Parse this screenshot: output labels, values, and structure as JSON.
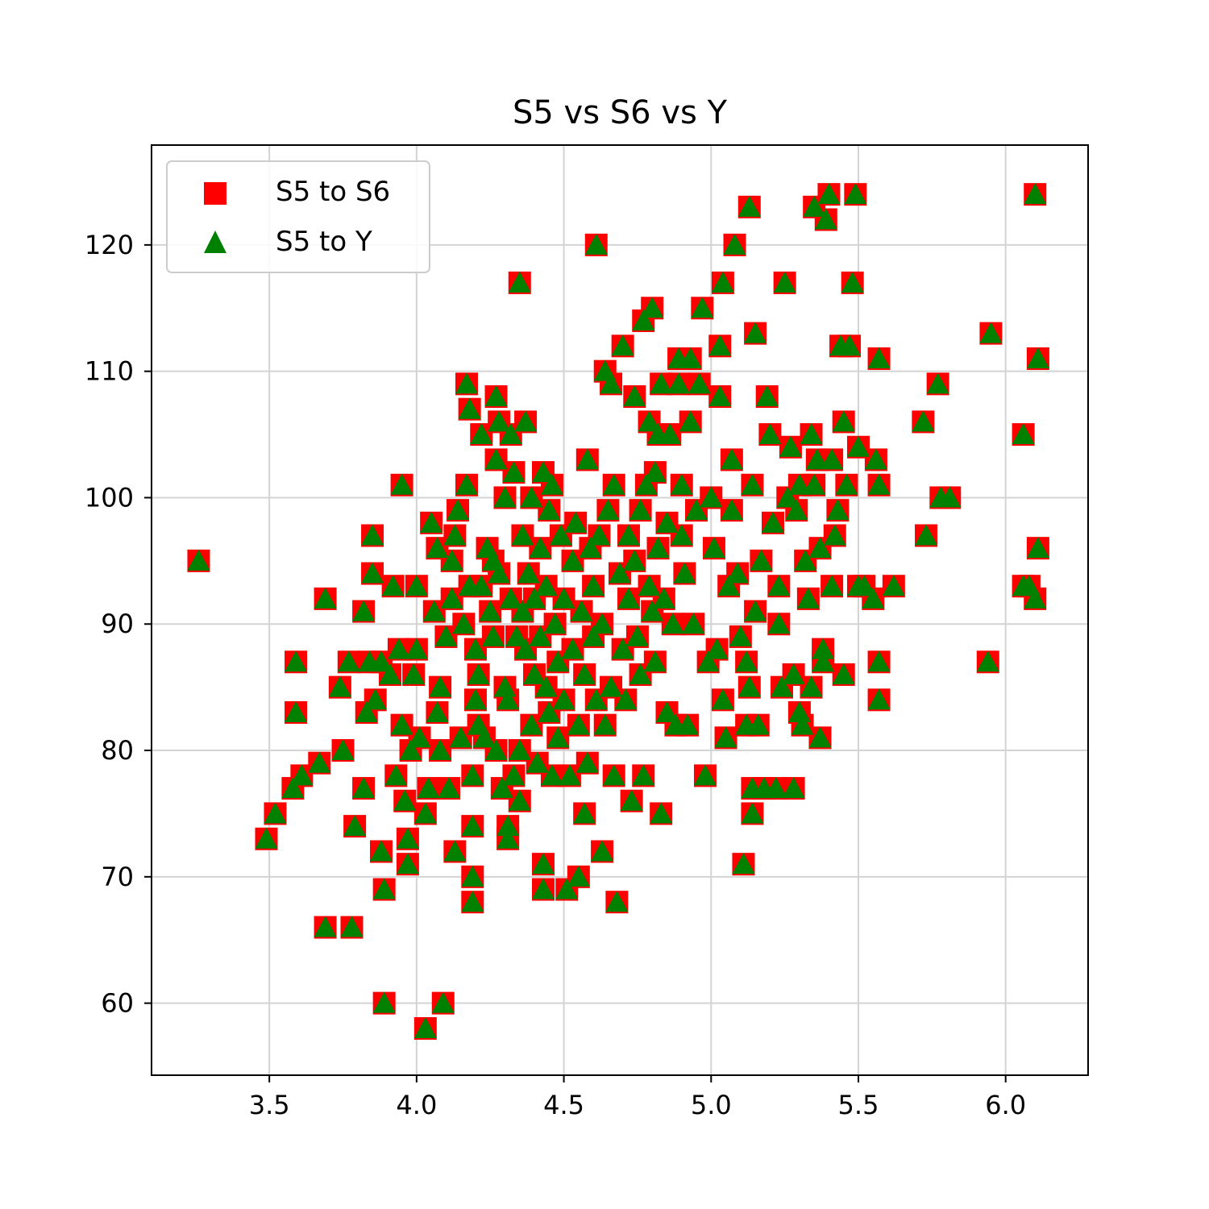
{
  "chart_data": {
    "type": "scatter",
    "title": "S5 vs S6 vs Y",
    "xlabel": "",
    "ylabel": "",
    "xlim": [
      3.1,
      6.28
    ],
    "ylim": [
      54.3,
      127.9
    ],
    "x_ticks": [
      "3.5",
      "4.0",
      "4.5",
      "5.0",
      "5.5",
      "6.0"
    ],
    "x_tick_values": [
      3.5,
      4.0,
      4.5,
      5.0,
      5.5,
      6.0
    ],
    "y_ticks": [
      "60",
      "70",
      "80",
      "90",
      "100",
      "110",
      "120"
    ],
    "y_tick_values": [
      60,
      70,
      80,
      90,
      100,
      110,
      120
    ],
    "grid": true,
    "legend_position": "upper-left",
    "colors": {
      "s6": "#ff0000",
      "y": "#008000"
    },
    "series": [
      {
        "name": "S5 to S6",
        "marker": "square",
        "color": "#ff0000"
      },
      {
        "name": "S5 to Y",
        "marker": "triangle",
        "color": "#008000"
      }
    ],
    "points": [
      [
        3.26,
        95
      ],
      [
        3.49,
        73
      ],
      [
        3.52,
        75
      ],
      [
        3.58,
        77
      ],
      [
        3.59,
        87
      ],
      [
        3.59,
        83
      ],
      [
        3.61,
        78
      ],
      [
        3.67,
        79
      ],
      [
        3.69,
        66
      ],
      [
        3.69,
        92
      ],
      [
        3.74,
        85
      ],
      [
        3.75,
        80
      ],
      [
        3.77,
        87
      ],
      [
        3.78,
        66
      ],
      [
        3.79,
        74
      ],
      [
        3.82,
        91
      ],
      [
        3.82,
        77
      ],
      [
        3.83,
        83
      ],
      [
        3.84,
        87
      ],
      [
        3.85,
        97
      ],
      [
        3.85,
        94
      ],
      [
        3.86,
        84
      ],
      [
        3.88,
        87
      ],
      [
        3.89,
        69
      ],
      [
        3.89,
        60
      ],
      [
        3.88,
        72
      ],
      [
        3.91,
        86
      ],
      [
        3.92,
        93
      ],
      [
        3.93,
        78
      ],
      [
        3.94,
        88
      ],
      [
        3.95,
        82
      ],
      [
        3.95,
        101
      ],
      [
        3.96,
        76
      ],
      [
        3.97,
        73
      ],
      [
        3.97,
        71
      ],
      [
        3.98,
        80
      ],
      [
        3.99,
        86
      ],
      [
        4.0,
        88
      ],
      [
        4.0,
        93
      ],
      [
        4.01,
        81
      ],
      [
        4.03,
        58
      ],
      [
        4.03,
        75
      ],
      [
        4.04,
        77
      ],
      [
        4.05,
        98
      ],
      [
        4.06,
        91
      ],
      [
        4.07,
        83
      ],
      [
        4.07,
        96
      ],
      [
        4.08,
        85
      ],
      [
        4.08,
        80
      ],
      [
        4.09,
        60
      ],
      [
        4.1,
        89
      ],
      [
        4.11,
        77
      ],
      [
        4.12,
        95
      ],
      [
        4.12,
        92
      ],
      [
        4.13,
        97
      ],
      [
        4.13,
        72
      ],
      [
        4.14,
        99
      ],
      [
        4.15,
        81
      ],
      [
        4.16,
        90
      ],
      [
        4.17,
        109
      ],
      [
        4.17,
        101
      ],
      [
        4.18,
        107
      ],
      [
        4.18,
        93
      ],
      [
        4.19,
        78
      ],
      [
        4.19,
        70
      ],
      [
        4.19,
        74
      ],
      [
        4.19,
        68
      ],
      [
        4.2,
        88
      ],
      [
        4.2,
        84
      ],
      [
        4.21,
        82
      ],
      [
        4.21,
        86
      ],
      [
        4.22,
        105
      ],
      [
        4.22,
        93
      ],
      [
        4.23,
        81
      ],
      [
        4.24,
        96
      ],
      [
        4.25,
        91
      ],
      [
        4.26,
        89
      ],
      [
        4.26,
        95
      ],
      [
        4.27,
        108
      ],
      [
        4.27,
        80
      ],
      [
        4.27,
        103
      ],
      [
        4.28,
        106
      ],
      [
        4.28,
        94
      ],
      [
        4.29,
        77
      ],
      [
        4.3,
        85
      ],
      [
        4.3,
        100
      ],
      [
        4.31,
        73
      ],
      [
        4.31,
        84
      ],
      [
        4.31,
        74
      ],
      [
        4.32,
        105
      ],
      [
        4.32,
        92
      ],
      [
        4.33,
        102
      ],
      [
        4.33,
        78
      ],
      [
        4.34,
        89
      ],
      [
        4.35,
        80
      ],
      [
        4.35,
        117
      ],
      [
        4.35,
        76
      ],
      [
        4.36,
        97
      ],
      [
        4.36,
        91
      ],
      [
        4.37,
        106
      ],
      [
        4.37,
        88
      ],
      [
        4.38,
        94
      ],
      [
        4.39,
        82
      ],
      [
        4.39,
        100
      ],
      [
        4.4,
        86
      ],
      [
        4.4,
        92
      ],
      [
        4.41,
        79
      ],
      [
        4.42,
        96
      ],
      [
        4.42,
        89
      ],
      [
        4.43,
        102
      ],
      [
        4.43,
        71
      ],
      [
        4.43,
        69
      ],
      [
        4.44,
        93
      ],
      [
        4.44,
        85
      ],
      [
        4.45,
        99
      ],
      [
        4.45,
        83
      ],
      [
        4.46,
        101
      ],
      [
        4.46,
        78
      ],
      [
        4.47,
        90
      ],
      [
        4.48,
        81
      ],
      [
        4.48,
        87
      ],
      [
        4.49,
        97
      ],
      [
        4.5,
        92
      ],
      [
        4.5,
        84
      ],
      [
        4.51,
        69
      ],
      [
        4.52,
        78
      ],
      [
        4.53,
        95
      ],
      [
        4.53,
        88
      ],
      [
        4.54,
        98
      ],
      [
        4.55,
        82
      ],
      [
        4.55,
        70
      ],
      [
        4.56,
        91
      ],
      [
        4.57,
        86
      ],
      [
        4.57,
        75
      ],
      [
        4.58,
        103
      ],
      [
        4.58,
        79
      ],
      [
        4.59,
        96
      ],
      [
        4.6,
        89
      ],
      [
        4.6,
        93
      ],
      [
        4.61,
        120
      ],
      [
        4.61,
        84
      ],
      [
        4.62,
        97
      ],
      [
        4.63,
        72
      ],
      [
        4.63,
        90
      ],
      [
        4.64,
        82
      ],
      [
        4.64,
        110
      ],
      [
        4.65,
        99
      ],
      [
        4.66,
        109
      ],
      [
        4.66,
        85
      ],
      [
        4.67,
        101
      ],
      [
        4.67,
        78
      ],
      [
        4.68,
        68
      ],
      [
        4.69,
        94
      ],
      [
        4.7,
        112
      ],
      [
        4.7,
        88
      ],
      [
        4.71,
        84
      ],
      [
        4.72,
        92
      ],
      [
        4.72,
        97
      ],
      [
        4.73,
        76
      ],
      [
        4.74,
        108
      ],
      [
        4.74,
        95
      ],
      [
        4.75,
        89
      ],
      [
        4.76,
        86
      ],
      [
        4.76,
        99
      ],
      [
        4.77,
        114
      ],
      [
        4.77,
        78
      ],
      [
        4.78,
        101
      ],
      [
        4.79,
        93
      ],
      [
        4.79,
        106
      ],
      [
        4.8,
        115
      ],
      [
        4.8,
        91
      ],
      [
        4.81,
        87
      ],
      [
        4.81,
        102
      ],
      [
        4.82,
        96
      ],
      [
        4.82,
        105
      ],
      [
        4.83,
        109
      ],
      [
        4.83,
        75
      ],
      [
        4.84,
        92
      ],
      [
        4.85,
        83
      ],
      [
        4.85,
        98
      ],
      [
        4.86,
        105
      ],
      [
        4.87,
        90
      ],
      [
        4.88,
        82
      ],
      [
        4.89,
        111
      ],
      [
        4.89,
        109
      ],
      [
        4.9,
        97
      ],
      [
        4.9,
        101
      ],
      [
        4.91,
        94
      ],
      [
        4.92,
        82
      ],
      [
        4.93,
        106
      ],
      [
        4.93,
        111
      ],
      [
        4.94,
        90
      ],
      [
        4.95,
        99
      ],
      [
        4.96,
        109
      ],
      [
        4.97,
        115
      ],
      [
        4.98,
        78
      ],
      [
        4.99,
        87
      ],
      [
        5.0,
        100
      ],
      [
        5.01,
        96
      ],
      [
        5.02,
        88
      ],
      [
        5.03,
        108
      ],
      [
        5.03,
        112
      ],
      [
        5.04,
        117
      ],
      [
        5.04,
        84
      ],
      [
        5.05,
        81
      ],
      [
        5.06,
        93
      ],
      [
        5.07,
        103
      ],
      [
        5.07,
        99
      ],
      [
        5.08,
        120
      ],
      [
        5.09,
        94
      ],
      [
        5.1,
        89
      ],
      [
        5.11,
        71
      ],
      [
        5.12,
        87
      ],
      [
        5.12,
        82
      ],
      [
        5.13,
        123
      ],
      [
        5.13,
        85
      ],
      [
        5.14,
        101
      ],
      [
        5.14,
        77
      ],
      [
        5.14,
        75
      ],
      [
        5.15,
        113
      ],
      [
        5.15,
        91
      ],
      [
        5.16,
        82
      ],
      [
        5.17,
        95
      ],
      [
        5.18,
        77
      ],
      [
        5.19,
        108
      ],
      [
        5.2,
        105
      ],
      [
        5.21,
        98
      ],
      [
        5.22,
        77
      ],
      [
        5.23,
        93
      ],
      [
        5.23,
        90
      ],
      [
        5.24,
        85
      ],
      [
        5.25,
        117
      ],
      [
        5.26,
        100
      ],
      [
        5.27,
        104
      ],
      [
        5.28,
        86
      ],
      [
        5.28,
        77
      ],
      [
        5.29,
        99
      ],
      [
        5.3,
        101
      ],
      [
        5.3,
        83
      ],
      [
        5.31,
        82
      ],
      [
        5.32,
        95
      ],
      [
        5.33,
        92
      ],
      [
        5.34,
        105
      ],
      [
        5.34,
        85
      ],
      [
        5.35,
        101
      ],
      [
        5.35,
        123
      ],
      [
        5.36,
        103
      ],
      [
        5.37,
        81
      ],
      [
        5.37,
        96
      ],
      [
        5.38,
        88
      ],
      [
        5.38,
        87
      ],
      [
        5.39,
        122
      ],
      [
        5.4,
        124
      ],
      [
        5.41,
        103
      ],
      [
        5.41,
        93
      ],
      [
        5.42,
        97
      ],
      [
        5.43,
        99
      ],
      [
        5.44,
        112
      ],
      [
        5.45,
        86
      ],
      [
        5.45,
        106
      ],
      [
        5.46,
        101
      ],
      [
        5.47,
        112
      ],
      [
        5.48,
        117
      ],
      [
        5.49,
        124
      ],
      [
        5.5,
        93
      ],
      [
        5.5,
        104
      ],
      [
        5.52,
        93
      ],
      [
        5.55,
        92
      ],
      [
        5.56,
        103
      ],
      [
        5.57,
        111
      ],
      [
        5.57,
        101
      ],
      [
        5.57,
        87
      ],
      [
        5.57,
        84
      ],
      [
        5.62,
        93
      ],
      [
        5.72,
        106
      ],
      [
        5.73,
        97
      ],
      [
        5.77,
        109
      ],
      [
        5.78,
        100
      ],
      [
        5.81,
        100
      ],
      [
        5.94,
        87
      ],
      [
        5.95,
        113
      ],
      [
        6.06,
        105
      ],
      [
        6.06,
        93
      ],
      [
        6.08,
        93
      ],
      [
        6.1,
        92
      ],
      [
        6.1,
        124
      ],
      [
        6.11,
        111
      ],
      [
        6.11,
        96
      ]
    ]
  }
}
